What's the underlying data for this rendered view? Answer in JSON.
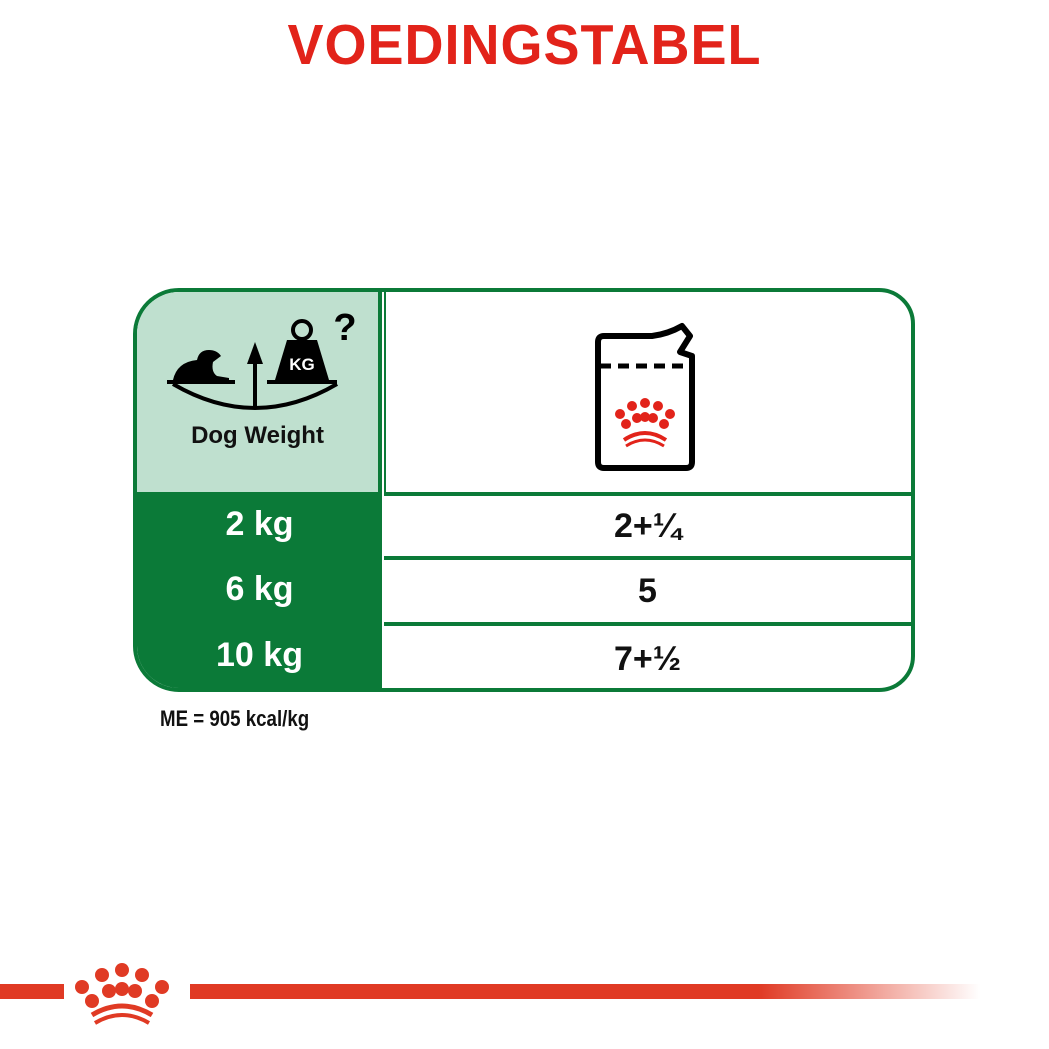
{
  "title": "VOEDINGSTABEL",
  "table": {
    "header_label": "Dog Weight",
    "weight_icon_text": "KG",
    "rows": [
      {
        "weight": "2 kg",
        "pouches": "2+¼"
      },
      {
        "weight": "6 kg",
        "pouches": "5"
      },
      {
        "weight": "10 kg",
        "pouches": "7+½"
      }
    ]
  },
  "footnote": "ME = 905 kcal/kg",
  "colors": {
    "brand_red": "#e2231a",
    "green": "#0b7a38",
    "light_green": "#bfe0cf"
  },
  "icons": [
    "dog-weight-scale-icon",
    "pouch-icon",
    "royal-canin-crown-logo"
  ]
}
